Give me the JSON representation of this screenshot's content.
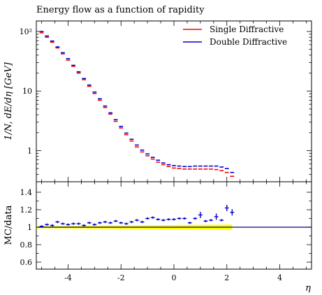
{
  "chart_data": {
    "type": "scatter",
    "title": "Energy flow as a function of rapidity",
    "xlabel": "η",
    "ylabel": "1/N, dE/dη [GeV]",
    "ratio_ylabel": "MC/data",
    "xlim": [
      -5.2,
      5.2
    ],
    "ylim": [
      0.3,
      150
    ],
    "yscale": "log",
    "ratio_ylim": [
      0.52,
      1.52
    ],
    "x_ticks": [
      -4,
      -2,
      0,
      2,
      4
    ],
    "x_tick_labels": [
      "-4",
      "-2",
      "0",
      "2",
      "4"
    ],
    "y_ticks": [
      1,
      10,
      100
    ],
    "y_tick_labels": [
      "1",
      "10",
      "10²"
    ],
    "ratio_ticks": [
      0.6,
      0.8,
      1,
      1.2,
      1.4
    ],
    "ratio_tick_labels": [
      "0.6",
      "0.8",
      "1",
      "1.2",
      "1.4"
    ],
    "legend_position": "top-right",
    "colors": {
      "single": "#ff0000",
      "double": "#0000cc",
      "band": "#ffff00",
      "reference": "#00008b"
    },
    "x": [
      -5.0,
      -4.8,
      -4.6,
      -4.4,
      -4.2,
      -4.0,
      -3.8,
      -3.6,
      -3.4,
      -3.2,
      -3.0,
      -2.8,
      -2.6,
      -2.4,
      -2.2,
      -2.0,
      -1.8,
      -1.6,
      -1.4,
      -1.2,
      -1.0,
      -0.8,
      -0.6,
      -0.4,
      -0.2,
      0.0,
      0.2,
      0.4,
      0.6,
      0.8,
      1.0,
      1.2,
      1.4,
      1.6,
      1.8,
      2.0,
      2.2
    ],
    "series": [
      {
        "name": "Single Diffractive",
        "values": [
          95,
          80,
          66,
          53,
          42,
          33,
          26,
          20,
          15.5,
          12,
          9.1,
          7.0,
          5.3,
          4.1,
          3.1,
          2.4,
          1.85,
          1.45,
          1.15,
          0.95,
          0.82,
          0.72,
          0.64,
          0.58,
          0.54,
          0.51,
          0.5,
          0.49,
          0.49,
          0.49,
          0.49,
          0.49,
          0.49,
          0.48,
          0.46,
          0.43,
          0.37
        ]
      },
      {
        "name": "Double Diffractive",
        "values": [
          100,
          84,
          69,
          55,
          44,
          35,
          27,
          21,
          16.2,
          12.6,
          9.6,
          7.4,
          5.6,
          4.3,
          3.3,
          2.55,
          1.97,
          1.55,
          1.24,
          1.02,
          0.88,
          0.77,
          0.69,
          0.62,
          0.58,
          0.56,
          0.55,
          0.54,
          0.54,
          0.55,
          0.55,
          0.55,
          0.55,
          0.55,
          0.53,
          0.5,
          0.43
        ]
      }
    ],
    "ratio": {
      "x": [
        -5.0,
        -4.8,
        -4.6,
        -4.4,
        -4.2,
        -4.0,
        -3.8,
        -3.6,
        -3.4,
        -3.2,
        -3.0,
        -2.8,
        -2.6,
        -2.4,
        -2.2,
        -2.0,
        -1.8,
        -1.6,
        -1.4,
        -1.2,
        -1.0,
        -0.8,
        -0.6,
        -0.4,
        -0.2,
        0.0,
        0.2,
        0.4,
        0.6,
        0.8,
        1.0,
        1.2,
        1.4,
        1.6,
        1.8,
        2.0,
        2.2
      ],
      "values": [
        1.01,
        1.03,
        1.02,
        1.06,
        1.04,
        1.03,
        1.04,
        1.04,
        1.02,
        1.05,
        1.03,
        1.05,
        1.06,
        1.05,
        1.07,
        1.05,
        1.04,
        1.06,
        1.08,
        1.06,
        1.1,
        1.11,
        1.09,
        1.08,
        1.09,
        1.09,
        1.1,
        1.1,
        1.05,
        1.1,
        1.14,
        1.07,
        1.08,
        1.12,
        1.08,
        1.22,
        1.17
      ],
      "band_x": [
        -5.2,
        2.2
      ],
      "band_halfwidth": [
        0.012,
        0.03
      ]
    }
  }
}
